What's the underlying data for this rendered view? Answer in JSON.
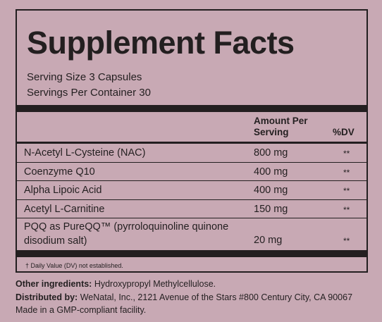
{
  "header": {
    "title": "Supplement Facts"
  },
  "serving": {
    "size": "Serving Size 3 Capsules",
    "per_container": "Servings Per Container 30"
  },
  "table": {
    "columns": [
      "Amount Per Serving",
      "%DV"
    ],
    "rows": [
      [
        "N-Acetyl L-Cysteine (NAC)",
        "800 mg",
        "**"
      ],
      [
        "Coenzyme Q10",
        "400 mg",
        "**"
      ],
      [
        "Alpha Lipoic Acid",
        "400 mg",
        "**"
      ],
      [
        "Acetyl L-Carnitine",
        "150 mg",
        "**"
      ],
      [
        "PQQ as PureQQ™ (pyrroloquinoline quinone disodium salt)",
        "20 mg",
        "**"
      ]
    ]
  },
  "footnote": "† Daily Value (DV) not established.",
  "other_ingredients": {
    "label": "Other ingredients:",
    "text": "Hydroxypropyl Methylcellulose."
  },
  "distributed_by": {
    "label": "Distributed by:",
    "text": "WeNatal, Inc., 2121 Avenue of the Stars #800 Century City, CA 90067"
  },
  "made_in": "Made in a GMP-compliant facility."
}
